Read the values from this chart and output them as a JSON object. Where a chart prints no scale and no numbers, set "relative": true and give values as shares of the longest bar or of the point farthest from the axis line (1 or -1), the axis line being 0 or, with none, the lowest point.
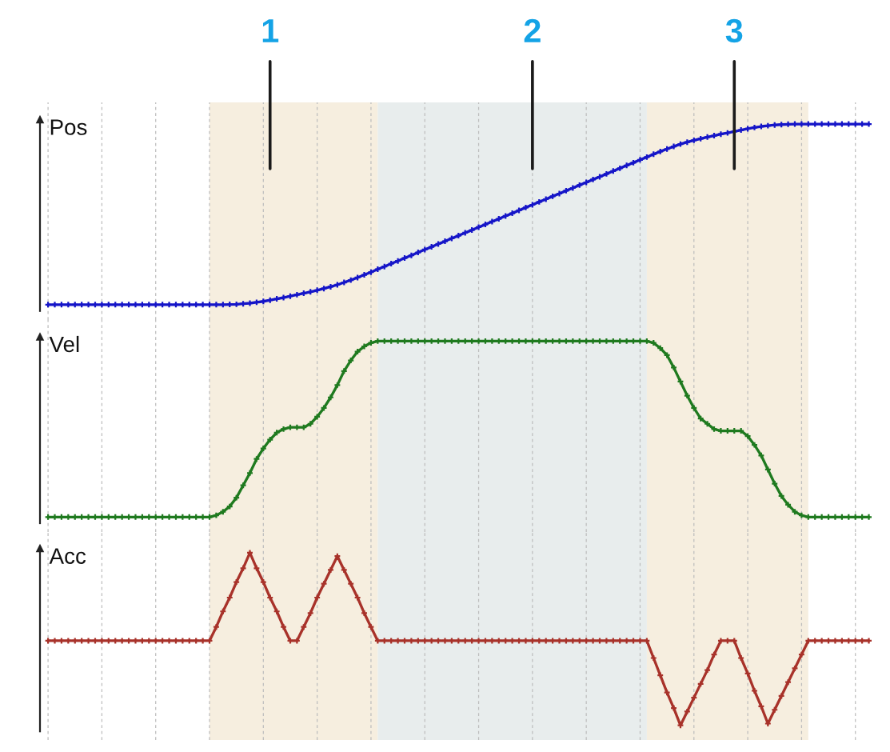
{
  "chart_data": [
    {
      "type": "line",
      "ylabel": "Pos",
      "relative": true,
      "grid": "x",
      "marker": "cross",
      "line_style": "solid",
      "categories": [
        null,
        null,
        null,
        null,
        null,
        null,
        null,
        null,
        null,
        null,
        null,
        null,
        null,
        null,
        null,
        null,
        null,
        null,
        null,
        null,
        null,
        null,
        null,
        null,
        null,
        null,
        null,
        null,
        null,
        null,
        null,
        null,
        null,
        null,
        null,
        null,
        null,
        null,
        null,
        null,
        null,
        null,
        null,
        null,
        null,
        null,
        null,
        null,
        null,
        null,
        null,
        null,
        null,
        null,
        null,
        null,
        null,
        null,
        null,
        null,
        null,
        null,
        null,
        null,
        null,
        null,
        null,
        null,
        null,
        null,
        null,
        null,
        null,
        null,
        null,
        null,
        null,
        null,
        null,
        null,
        null,
        null,
        null,
        null,
        null,
        null,
        null,
        null,
        null,
        null,
        null,
        null,
        null,
        null,
        null,
        null,
        null,
        null,
        null,
        null,
        null,
        null,
        null,
        null,
        null,
        null,
        null,
        null,
        null,
        null,
        null,
        null,
        null,
        null,
        null,
        null,
        null,
        null,
        null,
        null,
        null,
        null,
        null
      ],
      "series": [
        {
          "color": "#1515c8",
          "values": [
            0,
            0,
            0,
            0,
            0,
            0,
            0,
            0,
            0,
            0,
            0,
            0,
            0,
            0,
            0,
            0,
            0,
            0,
            0,
            0,
            0,
            0,
            0,
            0,
            0,
            0,
            0,
            0.001,
            0.002,
            0.005,
            0.008,
            0.013,
            0.018,
            0.025,
            0.032,
            0.039,
            0.047,
            0.055,
            0.063,
            0.071,
            0.08,
            0.089,
            0.099,
            0.11,
            0.123,
            0.136,
            0.15,
            0.165,
            0.18,
            0.196,
            0.211,
            0.227,
            0.242,
            0.258,
            0.273,
            0.289,
            0.305,
            0.32,
            0.336,
            0.351,
            0.367,
            0.382,
            0.398,
            0.413,
            0.429,
            0.444,
            0.46,
            0.475,
            0.491,
            0.506,
            0.522,
            0.538,
            0.553,
            0.569,
            0.584,
            0.6,
            0.615,
            0.631,
            0.646,
            0.662,
            0.677,
            0.693,
            0.708,
            0.724,
            0.74,
            0.755,
            0.771,
            0.786,
            0.802,
            0.817,
            0.833,
            0.848,
            0.862,
            0.876,
            0.889,
            0.9,
            0.91,
            0.919,
            0.928,
            0.936,
            0.944,
            0.951,
            0.959,
            0.967,
            0.974,
            0.981,
            0.987,
            0.991,
            0.995,
            0.997,
            0.999,
            1,
            1,
            1,
            1,
            1,
            1,
            1,
            1,
            1,
            1,
            1,
            1
          ]
        }
      ],
      "annotations": [
        "1",
        "2",
        "3"
      ]
    },
    {
      "type": "line",
      "ylabel": "Vel",
      "relative": true,
      "grid": "x",
      "marker": "cross",
      "line_style": "solid",
      "categories": [
        null,
        null,
        null,
        null,
        null,
        null,
        null,
        null,
        null,
        null,
        null,
        null,
        null,
        null,
        null,
        null,
        null,
        null,
        null,
        null,
        null,
        null,
        null,
        null,
        null,
        null,
        null,
        null,
        null,
        null,
        null,
        null,
        null,
        null,
        null,
        null,
        null,
        null,
        null,
        null,
        null,
        null,
        null,
        null,
        null,
        null,
        null,
        null,
        null,
        null,
        null,
        null,
        null,
        null,
        null,
        null,
        null,
        null,
        null,
        null,
        null,
        null,
        null,
        null,
        null,
        null,
        null,
        null,
        null,
        null,
        null,
        null,
        null,
        null,
        null,
        null,
        null,
        null,
        null,
        null,
        null,
        null,
        null,
        null,
        null,
        null,
        null,
        null,
        null,
        null,
        null,
        null,
        null,
        null,
        null,
        null,
        null,
        null,
        null,
        null,
        null,
        null,
        null,
        null,
        null,
        null,
        null,
        null,
        null,
        null,
        null,
        null,
        null,
        null,
        null,
        null,
        null,
        null,
        null,
        null,
        null,
        null,
        null
      ],
      "series": [
        {
          "color": "#1f7a1f",
          "values": [
            0,
            0,
            0,
            0,
            0,
            0,
            0,
            0,
            0,
            0,
            0,
            0,
            0,
            0,
            0,
            0,
            0,
            0,
            0,
            0,
            0,
            0,
            0,
            0,
            0,
            0.01,
            0.03,
            0.06,
            0.11,
            0.18,
            0.25,
            0.33,
            0.39,
            0.44,
            0.48,
            0.5,
            0.51,
            0.51,
            0.51,
            0.53,
            0.57,
            0.62,
            0.68,
            0.75,
            0.83,
            0.89,
            0.94,
            0.97,
            0.99,
            1,
            1,
            1,
            1,
            1,
            1,
            1,
            1,
            1,
            1,
            1,
            1,
            1,
            1,
            1,
            1,
            1,
            1,
            1,
            1,
            1,
            1,
            1,
            1,
            1,
            1,
            1,
            1,
            1,
            1,
            1,
            1,
            1,
            1,
            1,
            1,
            1,
            1,
            1,
            1,
            1,
            0.99,
            0.96,
            0.92,
            0.85,
            0.77,
            0.69,
            0.62,
            0.56,
            0.53,
            0.5,
            0.49,
            0.49,
            0.49,
            0.49,
            0.46,
            0.41,
            0.35,
            0.27,
            0.19,
            0.12,
            0.07,
            0.03,
            0.01,
            0,
            0,
            0,
            0,
            0,
            0,
            0,
            0,
            0,
            0
          ]
        }
      ]
    },
    {
      "type": "line",
      "ylabel": "Acc",
      "relative": true,
      "grid": "x",
      "marker": "cross",
      "line_style": "solid",
      "categories": [
        null,
        null,
        null,
        null,
        null,
        null,
        null,
        null,
        null,
        null,
        null,
        null,
        null,
        null,
        null,
        null,
        null,
        null,
        null,
        null,
        null,
        null,
        null,
        null,
        null,
        null,
        null,
        null,
        null,
        null,
        null,
        null,
        null,
        null,
        null,
        null,
        null,
        null,
        null,
        null,
        null,
        null,
        null,
        null,
        null,
        null,
        null,
        null,
        null,
        null,
        null,
        null,
        null,
        null,
        null,
        null,
        null,
        null,
        null,
        null,
        null,
        null,
        null,
        null,
        null,
        null,
        null,
        null,
        null,
        null,
        null,
        null,
        null,
        null,
        null,
        null,
        null,
        null,
        null,
        null,
        null,
        null,
        null,
        null,
        null,
        null,
        null,
        null,
        null,
        null,
        null,
        null,
        null,
        null,
        null,
        null,
        null,
        null,
        null,
        null,
        null,
        null,
        null,
        null,
        null,
        null,
        null,
        null,
        null,
        null,
        null,
        null,
        null,
        null,
        null,
        null,
        null,
        null,
        null,
        null,
        null,
        null,
        null
      ],
      "series": [
        {
          "color": "#a8322a",
          "values": [
            0.49,
            0.49,
            0.49,
            0.49,
            0.49,
            0.49,
            0.49,
            0.49,
            0.49,
            0.49,
            0.49,
            0.49,
            0.49,
            0.49,
            0.49,
            0.49,
            0.49,
            0.49,
            0.49,
            0.49,
            0.49,
            0.49,
            0.49,
            0.49,
            0.49,
            0.57,
            0.66,
            0.74,
            0.83,
            0.91,
            1,
            0.91,
            0.83,
            0.74,
            0.66,
            0.57,
            0.49,
            0.49,
            0.57,
            0.65,
            0.74,
            0.82,
            0.9,
            0.98,
            0.9,
            0.82,
            0.74,
            0.65,
            0.57,
            0.49,
            0.49,
            0.49,
            0.49,
            0.49,
            0.49,
            0.49,
            0.49,
            0.49,
            0.49,
            0.49,
            0.49,
            0.49,
            0.49,
            0.49,
            0.49,
            0.49,
            0.49,
            0.49,
            0.49,
            0.49,
            0.49,
            0.49,
            0.49,
            0.49,
            0.49,
            0.49,
            0.49,
            0.49,
            0.49,
            0.49,
            0.49,
            0.49,
            0.49,
            0.49,
            0.49,
            0.49,
            0.49,
            0.49,
            0.49,
            0.49,
            0.39,
            0.29,
            0.19,
            0.1,
            0,
            0.08,
            0.16,
            0.24,
            0.32,
            0.41,
            0.49,
            0.49,
            0.49,
            0.39,
            0.3,
            0.2,
            0.11,
            0.01,
            0.09,
            0.17,
            0.25,
            0.33,
            0.41,
            0.49,
            0.49,
            0.49,
            0.49,
            0.49,
            0.49,
            0.49,
            0.49,
            0.49,
            0.49
          ]
        }
      ]
    }
  ]
}
